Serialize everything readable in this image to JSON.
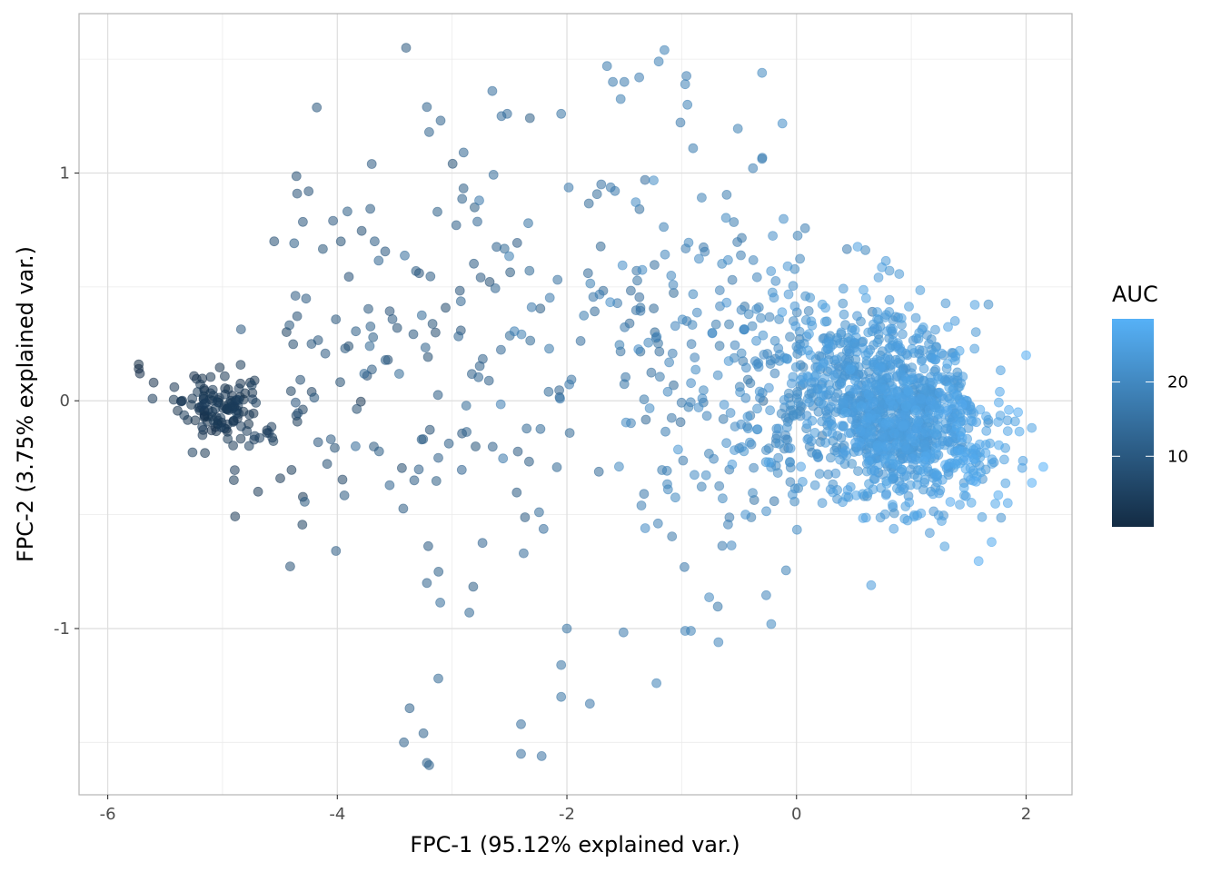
{
  "chart_data": {
    "type": "scatter",
    "title": "",
    "xlabel": "FPC-1 (95.12% explained var.)",
    "ylabel": "FPC-2 (3.75% explained var.)",
    "xlim": [
      -6.25,
      2.4
    ],
    "ylim": [
      -1.73,
      1.7
    ],
    "x_ticks": [
      {
        "value": -6,
        "label": "-6"
      },
      {
        "value": -4,
        "label": "-4"
      },
      {
        "value": -2,
        "label": "-2"
      },
      {
        "value": 0,
        "label": "0"
      },
      {
        "value": 2,
        "label": "2"
      }
    ],
    "y_ticks": [
      {
        "value": -1,
        "label": "-1"
      },
      {
        "value": 0,
        "label": "0"
      },
      {
        "value": 1,
        "label": "1"
      }
    ],
    "grid": true,
    "point_opacity": 0.55,
    "color_scale": {
      "title": "AUC",
      "variable": "AUC",
      "low_color": "#132B43",
      "high_color": "#56B1F7",
      "range": [
        0.5,
        28.5
      ],
      "ticks": [
        {
          "value": 10,
          "label": "10"
        },
        {
          "value": 20,
          "label": "20"
        }
      ],
      "legend_position": "right"
    },
    "fixed_points": [
      {
        "x": -5.73,
        "y": 0.16,
        "auc": 0.5
      },
      {
        "x": -5.73,
        "y": 0.14,
        "auc": 0.8
      },
      {
        "x": -5.72,
        "y": 0.12,
        "auc": 1.2
      },
      {
        "x": -5.6,
        "y": 0.08,
        "auc": 2
      },
      {
        "x": -5.42,
        "y": 0.06,
        "auc": 3
      },
      {
        "x": -5.35,
        "y": 0.0,
        "auc": 3.5
      },
      {
        "x": 2.0,
        "y": 0.2,
        "auc": 28
      },
      {
        "x": 2.15,
        "y": -0.29,
        "auc": 28.5
      },
      {
        "x": 2.05,
        "y": -0.36,
        "auc": 28
      },
      {
        "x": 1.7,
        "y": -0.62,
        "auc": 27
      },
      {
        "x": 0.65,
        "y": -0.81,
        "auc": 24
      },
      {
        "x": 1.85,
        "y": -0.04,
        "auc": 27.5
      },
      {
        "x": 1.93,
        "y": -0.05,
        "auc": 27.5
      },
      {
        "x": -1.15,
        "y": 1.54,
        "auc": 18
      },
      {
        "x": -1.2,
        "y": 1.49,
        "auc": 18
      },
      {
        "x": -0.3,
        "y": 1.44,
        "auc": 20
      },
      {
        "x": -1.65,
        "y": 1.47,
        "auc": 17
      },
      {
        "x": -1.6,
        "y": 1.4,
        "auc": 17
      },
      {
        "x": -1.5,
        "y": 1.4,
        "auc": 17
      },
      {
        "x": -1.37,
        "y": 1.42,
        "auc": 17.5
      },
      {
        "x": -0.97,
        "y": 1.39,
        "auc": 18.5
      },
      {
        "x": -0.95,
        "y": 1.3,
        "auc": 18.5
      },
      {
        "x": -2.65,
        "y": 1.36,
        "auc": 14
      },
      {
        "x": -2.57,
        "y": 1.25,
        "auc": 14
      },
      {
        "x": -2.52,
        "y": 1.26,
        "auc": 14
      },
      {
        "x": -3.22,
        "y": 1.29,
        "auc": 12
      },
      {
        "x": -3.1,
        "y": 1.23,
        "auc": 12
      },
      {
        "x": -3.2,
        "y": 1.18,
        "auc": 12
      },
      {
        "x": -2.05,
        "y": 1.26,
        "auc": 15.5
      },
      {
        "x": -3.2,
        "y": -1.6,
        "auc": 12
      },
      {
        "x": -3.22,
        "y": -1.59,
        "auc": 12
      },
      {
        "x": -3.25,
        "y": -1.46,
        "auc": 12
      },
      {
        "x": -3.42,
        "y": -1.5,
        "auc": 11.5
      },
      {
        "x": -3.37,
        "y": -1.35,
        "auc": 11.5
      },
      {
        "x": -2.22,
        "y": -1.56,
        "auc": 15
      },
      {
        "x": -2.4,
        "y": -1.55,
        "auc": 14.5
      },
      {
        "x": -2.4,
        "y": -1.42,
        "auc": 14.5
      },
      {
        "x": -2.05,
        "y": -1.3,
        "auc": 15.5
      },
      {
        "x": -1.8,
        "y": -1.33,
        "auc": 16
      },
      {
        "x": -2.05,
        "y": -1.16,
        "auc": 15.5
      },
      {
        "x": -2.0,
        "y": -1.0,
        "auc": 15.5
      },
      {
        "x": -1.22,
        "y": -1.24,
        "auc": 18
      },
      {
        "x": -0.97,
        "y": -1.01,
        "auc": 18.5
      },
      {
        "x": -0.92,
        "y": -1.01,
        "auc": 18.5
      },
      {
        "x": -0.68,
        "y": -1.06,
        "auc": 19
      },
      {
        "x": -0.22,
        "y": -0.98,
        "auc": 20
      },
      {
        "x": -3.22,
        "y": -0.8,
        "auc": 12
      },
      {
        "x": -2.85,
        "y": -0.93,
        "auc": 13
      },
      {
        "x": -4.55,
        "y": 0.7,
        "auc": 8
      },
      {
        "x": -4.35,
        "y": 0.91,
        "auc": 8.5
      },
      {
        "x": -4.25,
        "y": 0.92,
        "auc": 8.5
      },
      {
        "x": -3.7,
        "y": 1.04,
        "auc": 10
      },
      {
        "x": -2.9,
        "y": 1.09,
        "auc": 12.5
      }
    ],
    "clusters": [
      {
        "mx": -5.05,
        "my": -0.02,
        "sx": 0.16,
        "sy": 0.07,
        "n": 110,
        "a0": 1.5,
        "a1": 4.5
      },
      {
        "mx": -4.6,
        "my": -0.12,
        "sx": 0.25,
        "sy": 0.15,
        "n": 35,
        "a0": 3,
        "a1": 6
      },
      {
        "mx": -3.6,
        "my": 0.3,
        "sx": 0.55,
        "sy": 0.45,
        "n": 75,
        "a0": 7,
        "a1": 11
      },
      {
        "mx": -2.8,
        "my": 0.1,
        "sx": 0.55,
        "sy": 0.55,
        "n": 60,
        "a0": 10,
        "a1": 14
      },
      {
        "mx": -1.6,
        "my": 0.3,
        "sx": 0.5,
        "sy": 0.55,
        "n": 75,
        "a0": 13,
        "a1": 18
      },
      {
        "mx": -0.7,
        "my": 0.2,
        "sx": 0.45,
        "sy": 0.45,
        "n": 120,
        "a0": 16,
        "a1": 21
      },
      {
        "mx": -0.05,
        "my": 0.05,
        "sx": 0.3,
        "sy": 0.3,
        "n": 160,
        "a0": 19,
        "a1": 23
      },
      {
        "mx": 0.65,
        "my": 0.05,
        "sx": 0.35,
        "sy": 0.2,
        "n": 520,
        "a0": 21,
        "a1": 25
      },
      {
        "mx": 1.0,
        "my": -0.12,
        "sx": 0.3,
        "sy": 0.17,
        "n": 520,
        "a0": 22,
        "a1": 26
      },
      {
        "mx": 1.45,
        "my": -0.2,
        "sx": 0.22,
        "sy": 0.15,
        "n": 110,
        "a0": 24,
        "a1": 27.5
      }
    ]
  }
}
